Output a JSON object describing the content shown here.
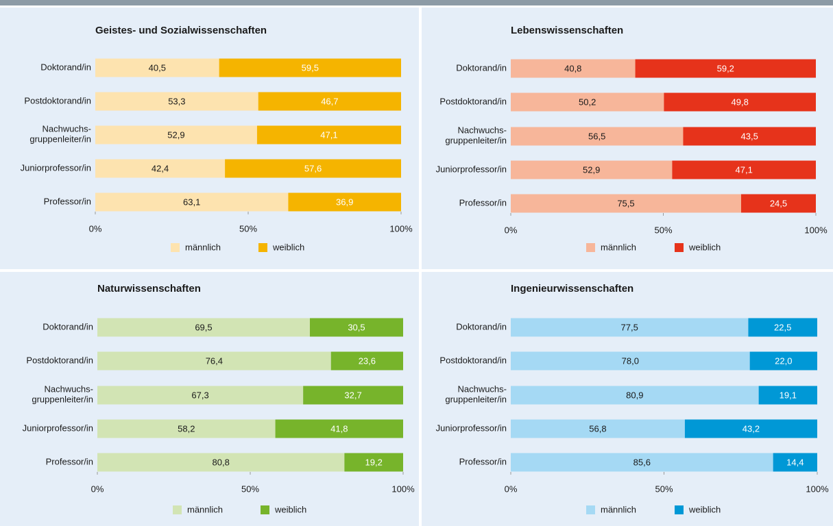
{
  "chart_data": [
    {
      "type": "bar",
      "stacked": true,
      "title": "Geistes- und Sozialwissenschaften",
      "categories": [
        "Doktorand/in",
        "Postdoktorand/in",
        "Nachwuchs-\ngruppenleiter/in",
        "Juniorprofessor/in",
        "Professor/in"
      ],
      "series": [
        {
          "name": "männlich",
          "color": "#fde3af",
          "label_color": "#1a1a1a",
          "values": [
            40.5,
            53.3,
            52.9,
            42.4,
            63.1
          ],
          "value_labels": [
            "40,5",
            "53,3",
            "52,9",
            "42,4",
            "63,1"
          ]
        },
        {
          "name": "weiblich",
          "color": "#f5b400",
          "label_color": "#ffffff",
          "values": [
            59.5,
            46.7,
            47.1,
            57.6,
            36.9
          ],
          "value_labels": [
            "59,5",
            "46,7",
            "47,1",
            "57,6",
            "36,9"
          ]
        }
      ],
      "xlim": [
        0,
        100
      ],
      "xticks": [
        {
          "value": 0,
          "label": "0%"
        },
        {
          "value": 50,
          "label": "50%"
        },
        {
          "value": 100,
          "label": "100%"
        }
      ]
    },
    {
      "type": "bar",
      "stacked": true,
      "title": "Lebenswissenschaften",
      "categories": [
        "Doktorand/in",
        "Postdoktorand/in",
        "Nachwuchs-\ngruppenleiter/in",
        "Juniorprofessor/in",
        "Professor/in"
      ],
      "series": [
        {
          "name": "männlich",
          "color": "#f7b69a",
          "label_color": "#1a1a1a",
          "values": [
            40.8,
            50.2,
            56.5,
            52.9,
            75.5
          ],
          "value_labels": [
            "40,8",
            "50,2",
            "56,5",
            "52,9",
            "75,5"
          ]
        },
        {
          "name": "weiblich",
          "color": "#e6331b",
          "label_color": "#ffffff",
          "values": [
            59.2,
            49.8,
            43.5,
            47.1,
            24.5
          ],
          "value_labels": [
            "59,2",
            "49,8",
            "43,5",
            "47,1",
            "24,5"
          ]
        }
      ],
      "xlim": [
        0,
        100
      ],
      "xticks": [
        {
          "value": 0,
          "label": "0%"
        },
        {
          "value": 50,
          "label": "50%"
        },
        {
          "value": 100,
          "label": "100%"
        }
      ]
    },
    {
      "type": "bar",
      "stacked": true,
      "title": "Naturwissenschaften",
      "categories": [
        "Doktorand/in",
        "Postdoktorand/in",
        "Nachwuchs-\ngruppenleiter/in",
        "Juniorprofessor/in",
        "Professor/in"
      ],
      "series": [
        {
          "name": "männlich",
          "color": "#d2e4b4",
          "label_color": "#1a1a1a",
          "values": [
            69.5,
            76.4,
            67.3,
            58.2,
            80.8
          ],
          "value_labels": [
            "69,5",
            "76,4",
            "67,3",
            "58,2",
            "80,8"
          ]
        },
        {
          "name": "weiblich",
          "color": "#77b42b",
          "label_color": "#ffffff",
          "values": [
            30.5,
            23.6,
            32.7,
            41.8,
            19.2
          ],
          "value_labels": [
            "30,5",
            "23,6",
            "32,7",
            "41,8",
            "19,2"
          ]
        }
      ],
      "xlim": [
        0,
        100
      ],
      "xticks": [
        {
          "value": 0,
          "label": "0%"
        },
        {
          "value": 50,
          "label": "50%"
        },
        {
          "value": 100,
          "label": "100%"
        }
      ]
    },
    {
      "type": "bar",
      "stacked": true,
      "title": "Ingenieurwissenschaften",
      "categories": [
        "Doktorand/in",
        "Postdoktorand/in",
        "Nachwuchs-\ngruppenleiter/in",
        "Juniorprofessor/in",
        "Professor/in"
      ],
      "series": [
        {
          "name": "männlich",
          "color": "#a5d9f4",
          "label_color": "#1a1a1a",
          "values": [
            77.5,
            78.0,
            80.9,
            56.8,
            85.6
          ],
          "value_labels": [
            "77,5",
            "78,0",
            "80,9",
            "56,8",
            "85,6"
          ]
        },
        {
          "name": "weiblich",
          "color": "#0098d6",
          "label_color": "#ffffff",
          "values": [
            22.5,
            22.0,
            19.1,
            43.2,
            14.4
          ],
          "value_labels": [
            "22,5",
            "22,0",
            "19,1",
            "43,2",
            "14,4"
          ]
        }
      ],
      "xlim": [
        0,
        100
      ],
      "xticks": [
        {
          "value": 0,
          "label": "0%"
        },
        {
          "value": 50,
          "label": "50%"
        },
        {
          "value": 100,
          "label": "100%"
        }
      ]
    }
  ]
}
